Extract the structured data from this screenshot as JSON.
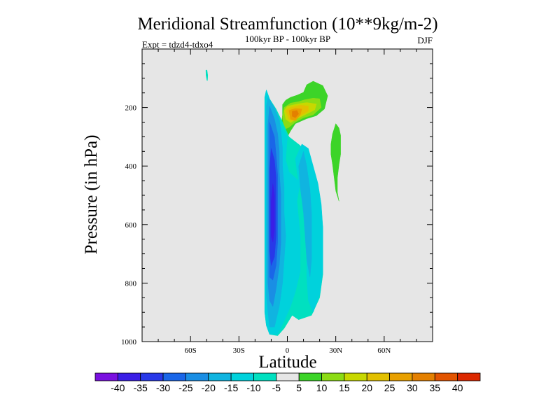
{
  "chart_data": {
    "type": "heatmap",
    "title": "Meridional Streamfunction (10**9kg/m-2)",
    "subtitle": "100kyr BP - 100kyr BP",
    "expt_label": "Expt = tdzd4-tdxo4",
    "season": "DJF",
    "xlabel": "Latitude",
    "ylabel": "Pressure (in hPa)",
    "xlim": [
      -90,
      90
    ],
    "ylim": [
      1000,
      0
    ],
    "x_ticks": [
      {
        "value": -60,
        "label": "60S"
      },
      {
        "value": -30,
        "label": "30S"
      },
      {
        "value": 0,
        "label": "0"
      },
      {
        "value": 30,
        "label": "30N"
      },
      {
        "value": 60,
        "label": "60N"
      }
    ],
    "y_ticks": [
      {
        "value": 200,
        "label": "200"
      },
      {
        "value": 400,
        "label": "400"
      },
      {
        "value": 600,
        "label": "600"
      },
      {
        "value": 800,
        "label": "800"
      },
      {
        "value": 1000,
        "label": "1000"
      }
    ],
    "background_color": "#e6e6e6",
    "colorbar": {
      "levels": [
        -45,
        -40,
        -35,
        -30,
        -25,
        -20,
        -15,
        -10,
        -5,
        5,
        10,
        15,
        20,
        25,
        30,
        35,
        40,
        45
      ],
      "labels": [
        "-40",
        "-35",
        "-30",
        "-25",
        "-20",
        "-15",
        "-10",
        "-5",
        "5",
        "10",
        "15",
        "20",
        "25",
        "30",
        "35",
        "40"
      ],
      "colors": [
        "#7a10e0",
        "#3a1ee6",
        "#2838e8",
        "#1a66e8",
        "#1a8ee4",
        "#10b4e0",
        "#00d2dc",
        "#00e0c0",
        "#e6e6e6",
        "#3cd428",
        "#8cdc14",
        "#c8d800",
        "#e2c000",
        "#e8a000",
        "#e48000",
        "#e25400",
        "#dc2800"
      ]
    },
    "contours": [
      {
        "name": "nh-upper-cell-outer",
        "level": 5,
        "color": "#3cd428",
        "points": [
          [
            -2,
            310
          ],
          [
            -4,
            270
          ],
          [
            -3,
            225
          ],
          [
            -3,
            190
          ],
          [
            -1,
            175
          ],
          [
            2,
            165
          ],
          [
            6,
            158
          ],
          [
            10,
            148
          ],
          [
            12,
            122
          ],
          [
            16,
            110
          ],
          [
            22,
            125
          ],
          [
            25,
            160
          ],
          [
            23,
            205
          ],
          [
            18,
            228
          ],
          [
            12,
            238
          ],
          [
            5,
            255
          ],
          [
            2,
            280
          ],
          [
            0,
            300
          ]
        ]
      },
      {
        "name": "nh-upper-cell-10",
        "level": 10,
        "color": "#8cdc14",
        "points": [
          [
            -3,
            230
          ],
          [
            -2,
            200
          ],
          [
            2,
            185
          ],
          [
            7,
            180
          ],
          [
            11,
            173
          ],
          [
            16,
            168
          ],
          [
            20,
            170
          ],
          [
            21,
            200
          ],
          [
            16,
            225
          ],
          [
            10,
            235
          ],
          [
            5,
            250
          ],
          [
            1,
            268
          ],
          [
            -2,
            275
          ]
        ]
      },
      {
        "name": "nh-upper-cell-15",
        "level": 15,
        "color": "#c8d800",
        "points": [
          [
            -2,
            210
          ],
          [
            0,
            196
          ],
          [
            6,
            188
          ],
          [
            12,
            183
          ],
          [
            18,
            188
          ],
          [
            17,
            208
          ],
          [
            12,
            222
          ],
          [
            6,
            238
          ],
          [
            2,
            252
          ],
          [
            -1,
            240
          ]
        ]
      },
      {
        "name": "nh-upper-cell-20",
        "level": 20,
        "color": "#e2c000",
        "points": [
          [
            -1,
            210
          ],
          [
            2,
            200
          ],
          [
            8,
            192
          ],
          [
            13,
            195
          ],
          [
            13,
            212
          ],
          [
            8,
            228
          ],
          [
            4,
            245
          ],
          [
            1,
            240
          ]
        ]
      },
      {
        "name": "nh-upper-cell-25",
        "level": 25,
        "color": "#e8a000",
        "points": [
          [
            1,
            210
          ],
          [
            5,
            203
          ],
          [
            9,
            205
          ],
          [
            8,
            225
          ],
          [
            5,
            245
          ],
          [
            2,
            240
          ]
        ]
      },
      {
        "name": "nh-upper-cell-30",
        "level": 30,
        "color": "#e48000",
        "points": [
          [
            3,
            213
          ],
          [
            6,
            210
          ],
          [
            7,
            222
          ],
          [
            5,
            235
          ],
          [
            3,
            230
          ]
        ]
      },
      {
        "name": "nh-subtropical-green-cell",
        "level": 5,
        "color": "#3cd428",
        "points": [
          [
            30,
            255
          ],
          [
            32,
            270
          ],
          [
            33,
            295
          ],
          [
            33,
            330
          ],
          [
            33,
            360
          ],
          [
            32,
            395
          ],
          [
            31,
            440
          ],
          [
            31,
            490
          ],
          [
            32,
            520
          ],
          [
            30,
            485
          ],
          [
            29,
            440
          ],
          [
            28,
            395
          ],
          [
            27,
            360
          ],
          [
            27,
            325
          ],
          [
            28,
            290
          ]
        ]
      },
      {
        "name": "sh-polar-patch",
        "level": -10,
        "color": "#00e0c0",
        "points": [
          [
            -50.5,
            72
          ],
          [
            -49.8,
            72
          ],
          [
            -49.3,
            90
          ],
          [
            -49.5,
            108
          ],
          [
            -49.8,
            108
          ],
          [
            -50.4,
            90
          ]
        ]
      },
      {
        "name": "main-cell-outer",
        "level": -10,
        "color": "#00e0c0",
        "points": [
          [
            -13,
            140
          ],
          [
            -11,
            170
          ],
          [
            -7,
            205
          ],
          [
            -3,
            250
          ],
          [
            1,
            300
          ],
          [
            8,
            330
          ],
          [
            13,
            390
          ],
          [
            18,
            460
          ],
          [
            20,
            530
          ],
          [
            22,
            610
          ],
          [
            22,
            690
          ],
          [
            22,
            770
          ],
          [
            20,
            850
          ],
          [
            15,
            910
          ],
          [
            7,
            925
          ],
          [
            3,
            910
          ],
          [
            -2,
            955
          ],
          [
            -6,
            980
          ],
          [
            -11,
            975
          ],
          [
            -13,
            945
          ],
          [
            -14,
            900
          ],
          [
            -14,
            850
          ],
          [
            -14,
            800
          ],
          [
            -14,
            750
          ],
          [
            -14,
            700
          ],
          [
            -14,
            650
          ],
          [
            -14,
            600
          ],
          [
            -14,
            550
          ],
          [
            -14,
            500
          ],
          [
            -14,
            450
          ],
          [
            -14,
            400
          ],
          [
            -14,
            350
          ],
          [
            -14,
            300
          ],
          [
            -14,
            250
          ],
          [
            -14,
            200
          ],
          [
            -14,
            165
          ]
        ]
      },
      {
        "name": "main-cell-minus15",
        "level": -15,
        "color": "#00d2dc",
        "points": [
          [
            -13,
            140
          ],
          [
            -11,
            170
          ],
          [
            -8,
            205
          ],
          [
            -5,
            250
          ],
          [
            0,
            300
          ],
          [
            -1,
            380
          ],
          [
            1,
            420
          ],
          [
            8,
            455
          ],
          [
            6,
            520
          ],
          [
            7,
            580
          ],
          [
            8,
            640
          ],
          [
            8,
            700
          ],
          [
            8,
            760
          ],
          [
            5,
            830
          ],
          [
            2,
            880
          ],
          [
            -2,
            930
          ],
          [
            -6,
            975
          ],
          [
            -11,
            975
          ],
          [
            -13,
            945
          ],
          [
            -14,
            900
          ],
          [
            -14,
            850
          ],
          [
            -14,
            800
          ],
          [
            -14,
            750
          ],
          [
            -14,
            700
          ],
          [
            -14,
            650
          ],
          [
            -14,
            600
          ],
          [
            -14,
            550
          ],
          [
            -14,
            500
          ],
          [
            -14,
            450
          ],
          [
            -14,
            400
          ],
          [
            -14,
            350
          ],
          [
            -14,
            300
          ],
          [
            -14,
            250
          ],
          [
            -14,
            200
          ],
          [
            -14,
            165
          ]
        ]
      },
      {
        "name": "nh-cyan-cell",
        "level": -15,
        "color": "#00d2dc",
        "points": [
          [
            9,
            325
          ],
          [
            13,
            340
          ],
          [
            16,
            400
          ],
          [
            19,
            460
          ],
          [
            21,
            530
          ],
          [
            22,
            610
          ],
          [
            22,
            690
          ],
          [
            22,
            760
          ],
          [
            20,
            840
          ],
          [
            16,
            900
          ],
          [
            13,
            860
          ],
          [
            12,
            780
          ],
          [
            12,
            700
          ],
          [
            11,
            620
          ],
          [
            10,
            540
          ],
          [
            8,
            480
          ],
          [
            6,
            420
          ],
          [
            5,
            375
          ]
        ]
      },
      {
        "name": "nh-cyan-cell-20",
        "level": -20,
        "color": "#10b4e0",
        "points": [
          [
            10,
            350
          ],
          [
            12,
            400
          ],
          [
            14,
            480
          ],
          [
            15,
            560
          ],
          [
            15,
            640
          ],
          [
            15,
            720
          ],
          [
            14,
            780
          ],
          [
            12,
            720
          ],
          [
            11,
            640
          ],
          [
            10,
            560
          ],
          [
            8,
            470
          ],
          [
            7,
            400
          ]
        ]
      },
      {
        "name": "main-cell-minus20",
        "level": -20,
        "color": "#10b4e0",
        "points": [
          [
            -12,
            165
          ],
          [
            -8,
            200
          ],
          [
            -5,
            240
          ],
          [
            -4,
            280
          ],
          [
            -3,
            340
          ],
          [
            -3,
            400
          ],
          [
            -2,
            470
          ],
          [
            -2,
            560
          ],
          [
            -1,
            640
          ],
          [
            -2,
            720
          ],
          [
            -3,
            800
          ],
          [
            -5,
            880
          ],
          [
            -8,
            950
          ],
          [
            -11,
            950
          ],
          [
            -12,
            900
          ],
          [
            -13,
            840
          ],
          [
            -13,
            780
          ],
          [
            -13,
            720
          ],
          [
            -13,
            660
          ],
          [
            -13,
            600
          ],
          [
            -13,
            540
          ],
          [
            -13,
            480
          ],
          [
            -13,
            420
          ],
          [
            -13,
            360
          ],
          [
            -13,
            300
          ],
          [
            -13,
            240
          ],
          [
            -13,
            195
          ]
        ]
      },
      {
        "name": "main-cell-minus25",
        "level": -25,
        "color": "#1a8ee4",
        "points": [
          [
            -11,
            195
          ],
          [
            -8,
            240
          ],
          [
            -6,
            290
          ],
          [
            -5,
            350
          ],
          [
            -5,
            420
          ],
          [
            -4,
            500
          ],
          [
            -4,
            580
          ],
          [
            -4,
            660
          ],
          [
            -5,
            740
          ],
          [
            -7,
            820
          ],
          [
            -9,
            880
          ],
          [
            -11,
            860
          ],
          [
            -12,
            800
          ],
          [
            -12,
            740
          ],
          [
            -12,
            680
          ],
          [
            -12,
            620
          ],
          [
            -12,
            560
          ],
          [
            -12,
            500
          ],
          [
            -12,
            440
          ],
          [
            -12,
            380
          ],
          [
            -12,
            320
          ],
          [
            -12,
            260
          ]
        ]
      },
      {
        "name": "main-cell-minus30",
        "level": -30,
        "color": "#1a66e8",
        "points": [
          [
            -11,
            250
          ],
          [
            -8,
            300
          ],
          [
            -7,
            360
          ],
          [
            -6,
            430
          ],
          [
            -6,
            500
          ],
          [
            -6,
            580
          ],
          [
            -6,
            660
          ],
          [
            -7,
            740
          ],
          [
            -9,
            790
          ],
          [
            -11,
            780
          ],
          [
            -11,
            720
          ],
          [
            -11,
            660
          ],
          [
            -11,
            600
          ],
          [
            -11,
            540
          ],
          [
            -11,
            480
          ],
          [
            -11,
            420
          ],
          [
            -11,
            360
          ],
          [
            -11,
            300
          ]
        ]
      },
      {
        "name": "main-cell-minus35",
        "level": -35,
        "color": "#2838e8",
        "points": [
          [
            -10,
            340
          ],
          [
            -8,
            380
          ],
          [
            -7,
            440
          ],
          [
            -7,
            500
          ],
          [
            -7,
            570
          ],
          [
            -7,
            640
          ],
          [
            -8,
            710
          ],
          [
            -10,
            740
          ],
          [
            -11,
            690
          ],
          [
            -11,
            620
          ],
          [
            -11,
            550
          ],
          [
            -11,
            480
          ],
          [
            -11,
            410
          ]
        ]
      },
      {
        "name": "main-cell-minus40",
        "level": -40,
        "color": "#3a1ee6",
        "points": [
          [
            -9,
            460
          ],
          [
            -8,
            500
          ],
          [
            -8,
            560
          ],
          [
            -8,
            620
          ],
          [
            -9,
            660
          ],
          [
            -10,
            640
          ],
          [
            -10,
            580
          ],
          [
            -10,
            520
          ]
        ]
      }
    ]
  }
}
